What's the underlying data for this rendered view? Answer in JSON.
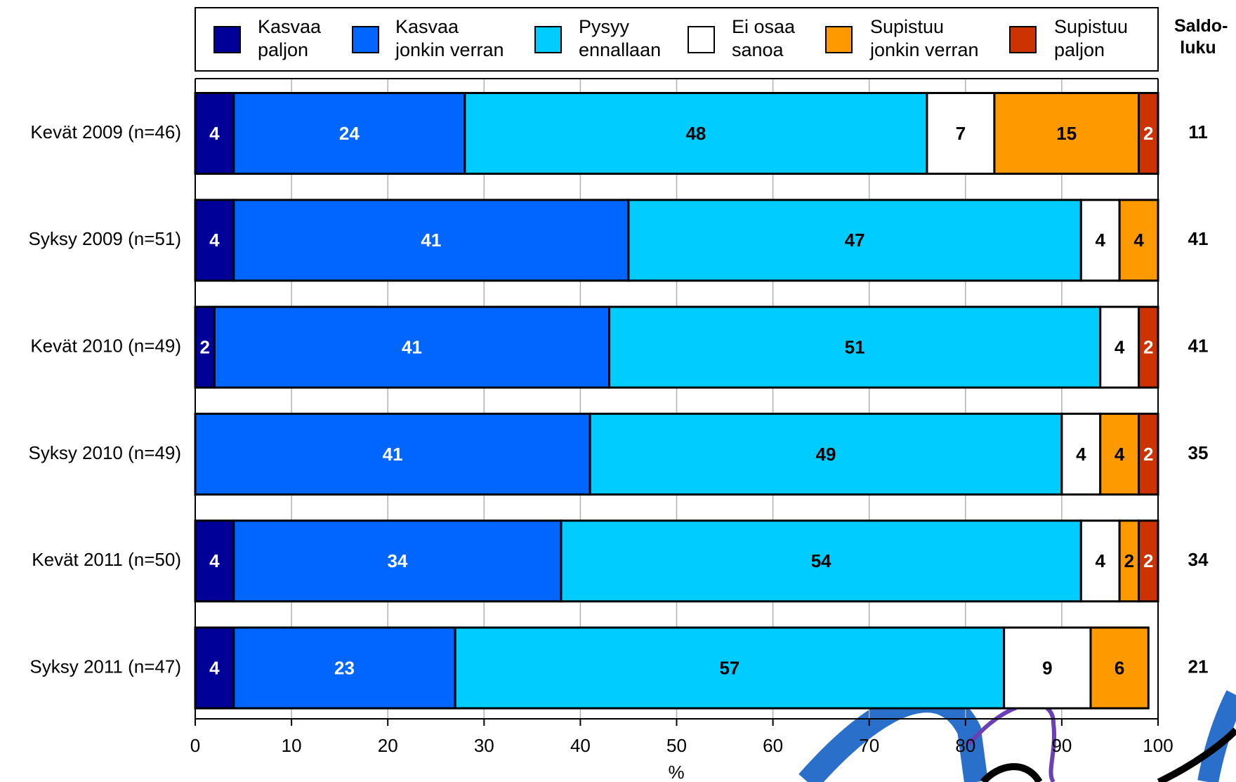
{
  "chart_data": {
    "type": "stacked-bar-horizontal",
    "categories": [
      "Kevät 2009 (n=46)",
      "Syksy 2009 (n=51)",
      "Kevät 2010 (n=49)",
      "Syksy 2010 (n=49)",
      "Kevät 2011 (n=50)",
      "Syksy 2011 (n=47)"
    ],
    "series": [
      {
        "name": "Kasvaa\npaljon",
        "color": "#000099",
        "label_color": "#ffffff",
        "values": [
          4,
          4,
          2,
          null,
          4,
          4
        ]
      },
      {
        "name": "Kasvaa\njonkin verran",
        "color": "#0066ff",
        "label_color": "#ffffff",
        "values": [
          24,
          41,
          41,
          41,
          34,
          23
        ]
      },
      {
        "name": "Pysyy\nennallaan",
        "color": "#00ccff",
        "label_color": "#000000",
        "values": [
          48,
          47,
          51,
          49,
          54,
          57
        ]
      },
      {
        "name": "Ei osaa\nsanoa",
        "color": "#ffffff",
        "label_color": "#000000",
        "values": [
          7,
          4,
          4,
          4,
          4,
          9
        ]
      },
      {
        "name": "Supistuu\njonkin verran",
        "color": "#ff9900",
        "label_color": "#000000",
        "values": [
          15,
          4,
          null,
          4,
          2,
          6
        ]
      },
      {
        "name": "Supistuu\npaljon",
        "color": "#cc3300",
        "label_color": "#ffffff",
        "values": [
          2,
          null,
          2,
          2,
          2,
          null
        ]
      }
    ],
    "saldo_title": "Saldo-\nluku",
    "saldo": [
      11,
      41,
      41,
      35,
      34,
      21
    ],
    "x_label": "%",
    "xlim": [
      0,
      100
    ],
    "xticks": [
      0,
      10,
      20,
      30,
      40,
      50,
      60,
      70,
      80,
      90,
      100
    ],
    "grid": true
  }
}
